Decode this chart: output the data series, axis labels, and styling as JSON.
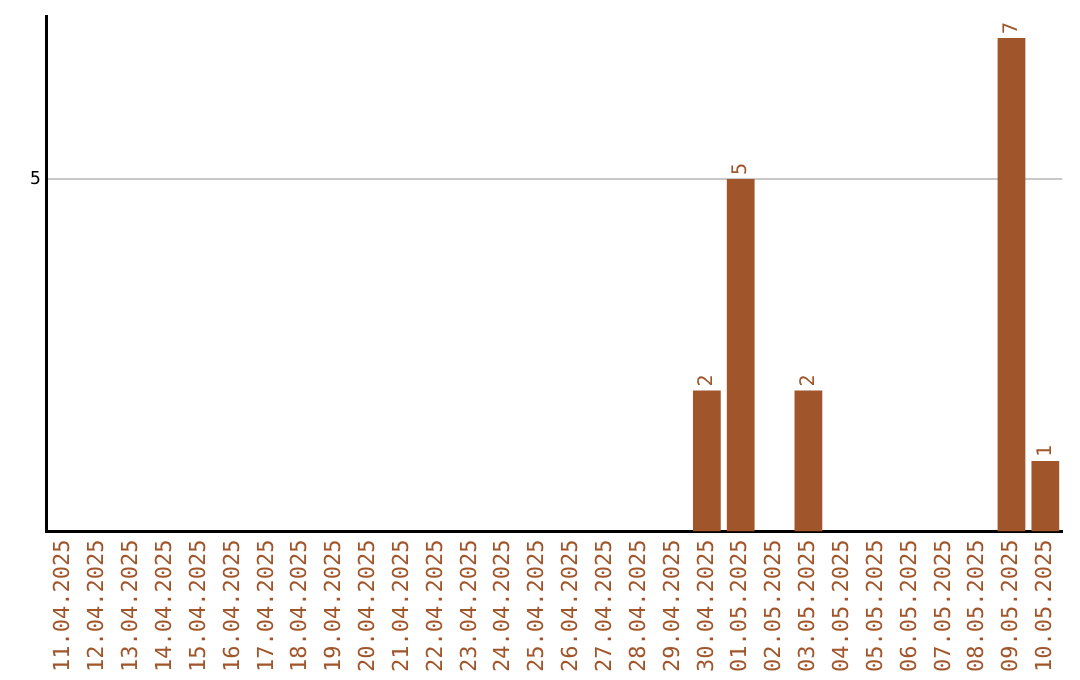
{
  "chart_data": {
    "type": "bar",
    "categories": [
      "11.04.2025",
      "12.04.2025",
      "13.04.2025",
      "14.04.2025",
      "15.04.2025",
      "16.04.2025",
      "17.04.2025",
      "18.04.2025",
      "19.04.2025",
      "20.04.2025",
      "21.04.2025",
      "22.04.2025",
      "23.04.2025",
      "24.04.2025",
      "25.04.2025",
      "26.04.2025",
      "27.04.2025",
      "28.04.2025",
      "29.04.2025",
      "30.04.2025",
      "01.05.2025",
      "02.05.2025",
      "03.05.2025",
      "04.05.2025",
      "05.05.2025",
      "06.05.2025",
      "07.05.2025",
      "08.05.2025",
      "09.05.2025",
      "10.05.2025"
    ],
    "values": [
      null,
      null,
      null,
      null,
      null,
      null,
      null,
      null,
      null,
      null,
      null,
      null,
      null,
      null,
      null,
      null,
      null,
      null,
      null,
      2,
      5,
      null,
      2,
      null,
      null,
      null,
      null,
      null,
      7,
      1
    ],
    "value_labels": [
      null,
      null,
      null,
      null,
      null,
      null,
      null,
      null,
      null,
      null,
      null,
      null,
      null,
      null,
      null,
      null,
      null,
      null,
      null,
      "2",
      "5",
      null,
      "2",
      null,
      null,
      null,
      null,
      null,
      "7",
      "1"
    ],
    "ylim": [
      0,
      7.3
    ],
    "yticks": [
      5
    ],
    "grid": "y",
    "color": "#a0552a",
    "legend": false
  }
}
